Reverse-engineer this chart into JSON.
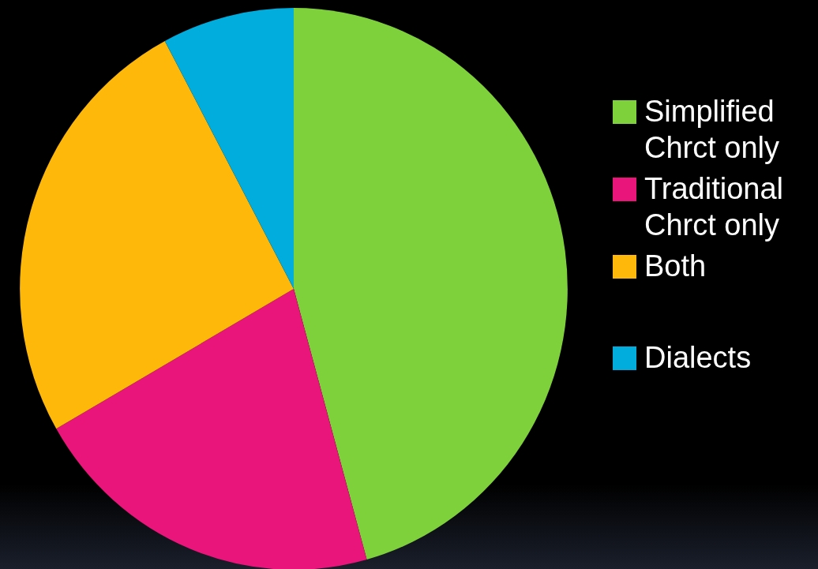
{
  "chart_data": {
    "type": "pie",
    "categories": [
      "Simplified Chrct only",
      "Traditional Chrct only",
      "Both",
      "Dialects"
    ],
    "values": [
      45.7,
      21.0,
      25.5,
      7.8
    ],
    "colors": [
      "#7fd13b",
      "#ea157a",
      "#feb80a",
      "#00addc"
    ],
    "legend": "right"
  }
}
